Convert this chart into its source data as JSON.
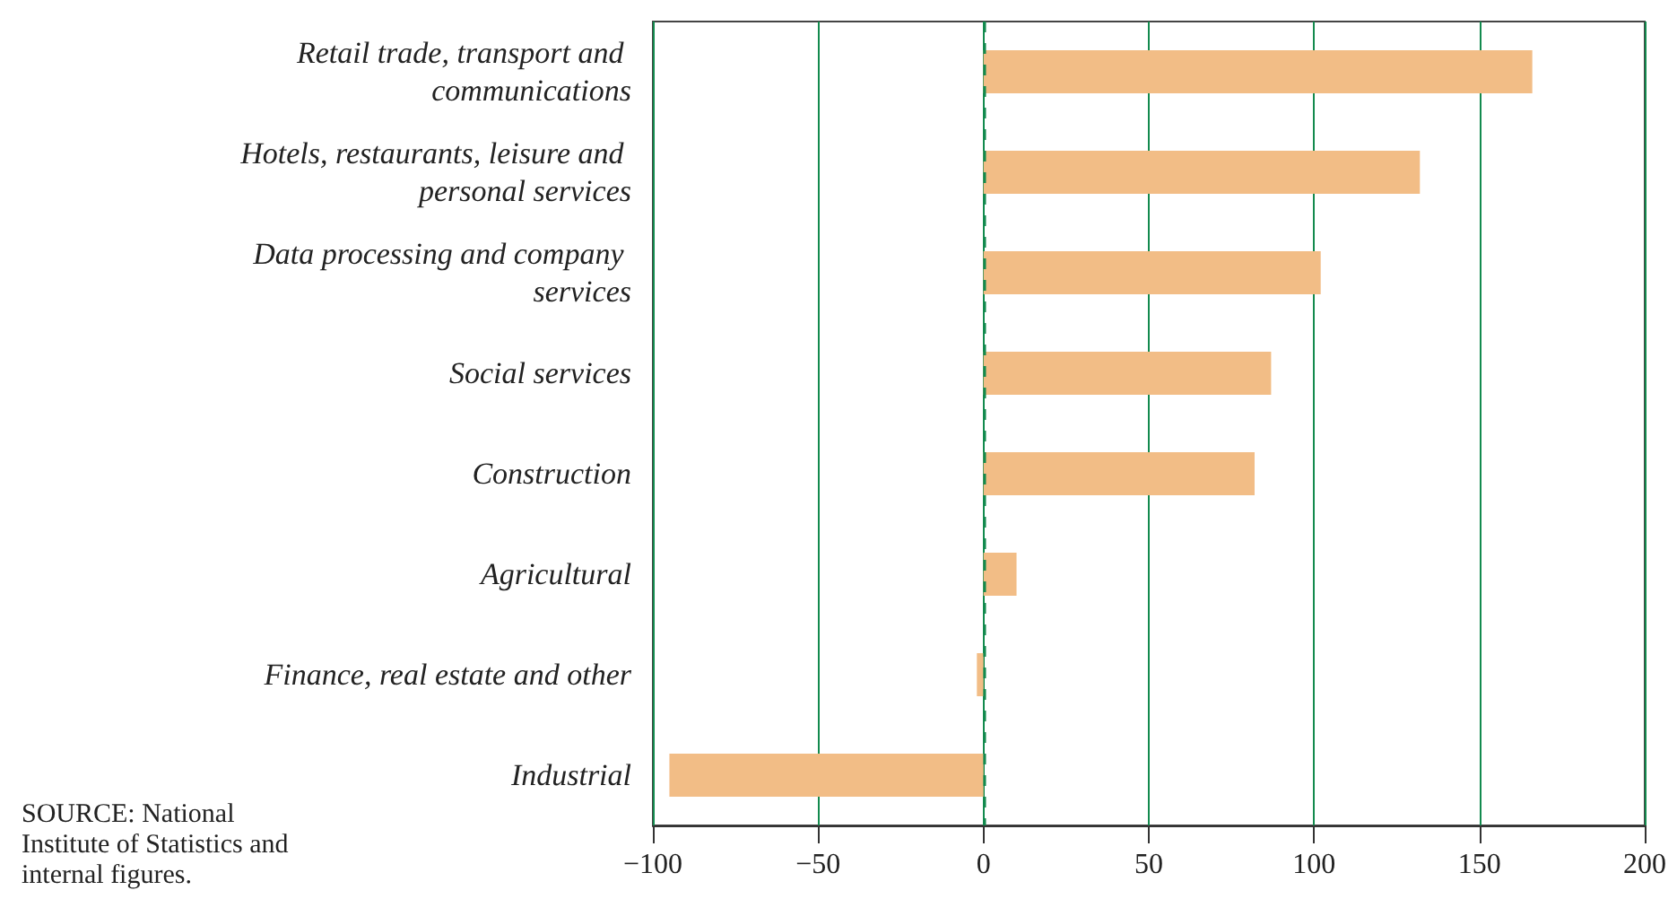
{
  "chart_data": {
    "type": "bar",
    "orientation": "horizontal",
    "categories": [
      "Retail trade, transport and communications",
      "Hotels, restaurants, leisure and personal services",
      "Data processing and company services",
      "Social services",
      "Construction",
      "Agricultural",
      "Finance, real estate and other",
      "Industrial"
    ],
    "values": [
      166,
      132,
      102,
      87,
      82,
      10,
      -2,
      -95
    ],
    "color": "#f2bd86",
    "xlim": [
      -100,
      200
    ],
    "xticks": [
      {
        "value": -100,
        "label": "−100"
      },
      {
        "value": -50,
        "label": "−50"
      },
      0,
      50,
      100,
      150,
      200
    ],
    "grid": "x",
    "ref_lines": [
      {
        "axis": "x",
        "value": 0,
        "color": "#138a4e",
        "line_style": "dashed"
      }
    ],
    "annotations": [
      "SOURCE: National Institute of Statistics and internal figures."
    ]
  }
}
